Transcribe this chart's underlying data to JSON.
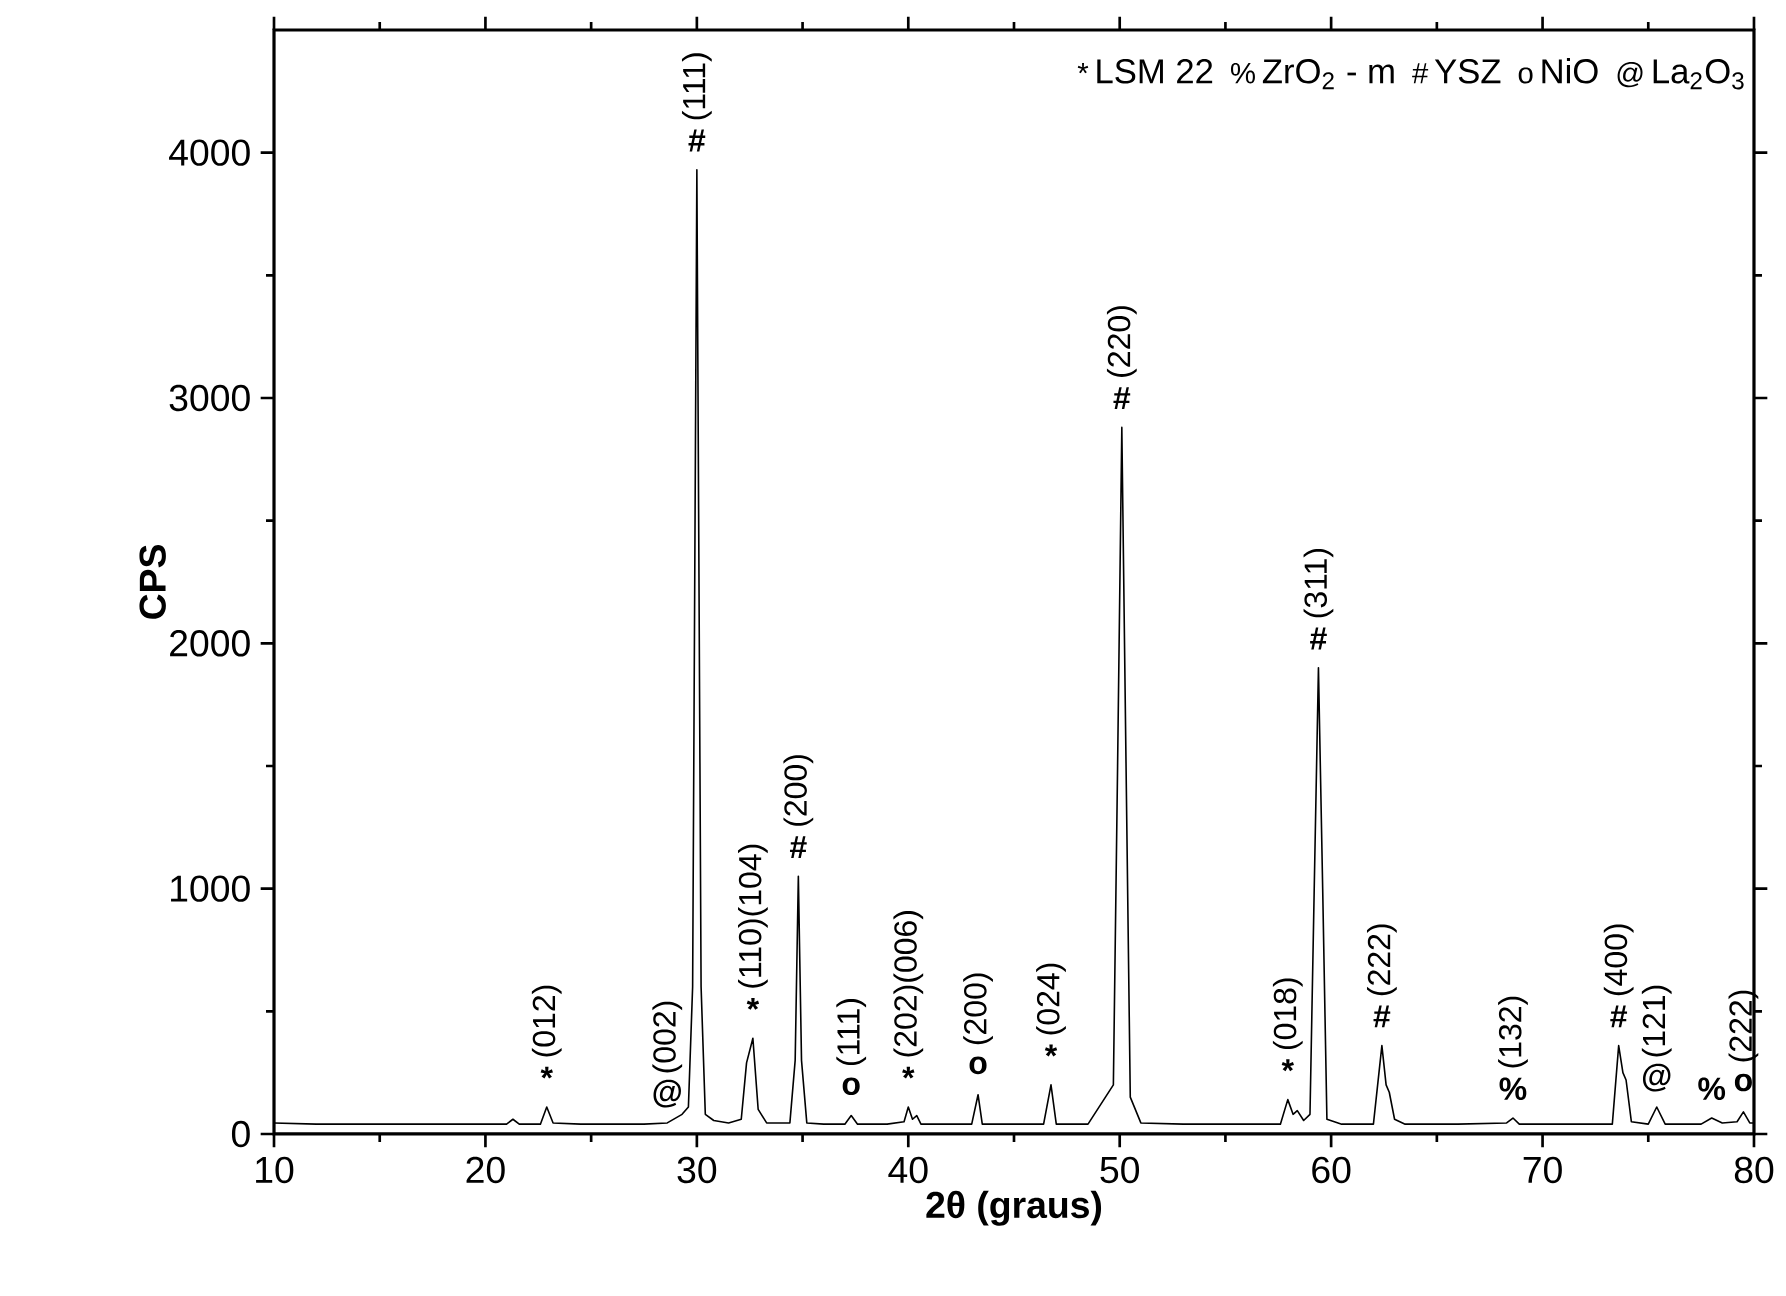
{
  "chart_data": {
    "type": "line",
    "xlabel": "2θ (graus)",
    "ylabel": "CPS",
    "xlim": [
      10,
      80
    ],
    "ylim": [
      0,
      4500
    ],
    "xticks": [
      10,
      20,
      30,
      40,
      50,
      60,
      70,
      80
    ],
    "yticks": [
      0,
      1000,
      2000,
      3000,
      4000
    ],
    "series": [
      {
        "color": "#000000",
        "x": [
          10,
          12,
          14,
          16,
          18,
          20,
          21.0,
          21.3,
          21.6,
          22.6,
          22.9,
          23.2,
          24.5,
          26,
          27.5,
          28.6,
          29.3,
          29.6,
          29.8,
          30.0,
          30.2,
          30.4,
          30.8,
          31.5,
          32.1,
          32.35,
          32.65,
          32.9,
          33.3,
          34.4,
          34.65,
          34.8,
          34.95,
          35.2,
          36,
          37.0,
          37.3,
          37.6,
          39.0,
          39.8,
          40.0,
          40.2,
          40.4,
          40.6,
          42,
          43.0,
          43.3,
          43.5,
          45,
          46.4,
          46.75,
          47.0,
          48.5,
          49.7,
          49.9,
          50.1,
          50.3,
          50.5,
          51,
          53,
          55,
          57.6,
          57.95,
          58.2,
          58.4,
          58.7,
          59.0,
          59.2,
          59.4,
          59.6,
          59.8,
          60.5,
          62.0,
          62.4,
          62.6,
          62.75,
          63.0,
          63.5,
          66,
          68.3,
          68.6,
          68.9,
          71,
          73.3,
          73.6,
          73.8,
          73.95,
          74.2,
          75.0,
          75.4,
          75.8,
          77.5,
          78.0,
          78.5,
          79.2,
          79.5,
          79.8,
          80
        ],
        "values": [
          45,
          40,
          40,
          40,
          40,
          40,
          40,
          60,
          40,
          40,
          110,
          45,
          40,
          40,
          40,
          45,
          80,
          110,
          600,
          3930,
          600,
          80,
          55,
          45,
          60,
          290,
          390,
          100,
          45,
          45,
          300,
          1050,
          300,
          45,
          40,
          40,
          75,
          40,
          40,
          50,
          110,
          60,
          75,
          40,
          40,
          40,
          160,
          40,
          40,
          40,
          200,
          40,
          40,
          200,
          1500,
          2880,
          1500,
          150,
          45,
          40,
          40,
          40,
          140,
          80,
          95,
          55,
          80,
          1000,
          1900,
          1000,
          60,
          40,
          40,
          360,
          200,
          170,
          60,
          40,
          40,
          45,
          65,
          40,
          40,
          40,
          360,
          250,
          220,
          50,
          40,
          110,
          40,
          40,
          65,
          45,
          50,
          90,
          45,
          45
        ]
      }
    ],
    "annotations": [
      "*",
      "LSM 22",
      "%",
      "ZrO$_{2}$ - m",
      "#",
      "YSZ",
      "o",
      "NiO",
      "@",
      "La$_{2}$O$_{3}$",
      {
        "text": "*",
        "x": 22.9,
        "y": 110
      },
      {
        "text": "(012)",
        "x": 22.9,
        "y": 110
      },
      {
        "text": "@",
        "x": 28.6,
        "y": 45
      },
      {
        "text": "(002)",
        "x": 28.6,
        "y": 45
      },
      {
        "text": "#",
        "x": 30.0,
        "y": 3930
      },
      {
        "text": "(111)",
        "x": 30.0,
        "y": 3930
      },
      {
        "text": "*",
        "x": 32.65,
        "y": 390
      },
      {
        "text": "(110)(104)",
        "x": 32.65,
        "y": 390
      },
      {
        "text": "#",
        "x": 34.8,
        "y": 1050
      },
      {
        "text": "(200)",
        "x": 34.8,
        "y": 1050
      },
      {
        "text": "o",
        "x": 37.3,
        "y": 75
      },
      {
        "text": "(111)",
        "x": 37.3,
        "y": 75
      },
      {
        "text": "*",
        "x": 40.0,
        "y": 110
      },
      {
        "text": "(202)(006)",
        "x": 40.0,
        "y": 110
      },
      {
        "text": "o",
        "x": 43.3,
        "y": 160
      },
      {
        "text": "(200)",
        "x": 43.3,
        "y": 160
      },
      {
        "text": "*",
        "x": 46.75,
        "y": 200
      },
      {
        "text": "(024)",
        "x": 46.75,
        "y": 200
      },
      {
        "text": "#",
        "x": 50.1,
        "y": 2880
      },
      {
        "text": "(220)",
        "x": 50.1,
        "y": 2880
      },
      {
        "text": "*",
        "x": 57.95,
        "y": 140
      },
      {
        "text": "(018)",
        "x": 57.95,
        "y": 140
      },
      {
        "text": "#",
        "x": 59.4,
        "y": 1900
      },
      {
        "text": "(311)",
        "x": 59.4,
        "y": 1900
      },
      {
        "text": "#",
        "x": 62.4,
        "y": 360
      },
      {
        "text": "(222)",
        "x": 62.4,
        "y": 360
      },
      {
        "text": "%",
        "x": 68.6,
        "y": 65
      },
      {
        "text": "(132)",
        "x": 68.6,
        "y": 65
      },
      {
        "text": "#",
        "x": 73.6,
        "y": 360
      },
      {
        "text": "(400)",
        "x": 73.6,
        "y": 360
      },
      {
        "text": "@",
        "x": 75.4,
        "y": 110
      },
      {
        "text": "(121)",
        "x": 75.4,
        "y": 110
      },
      {
        "text": "%",
        "x": 78.0,
        "y": 65
      },
      {
        "text": "o",
        "x": 79.5,
        "y": 90
      },
      {
        "text": "(222)",
        "x": 79.5,
        "y": 90
      }
    ]
  }
}
